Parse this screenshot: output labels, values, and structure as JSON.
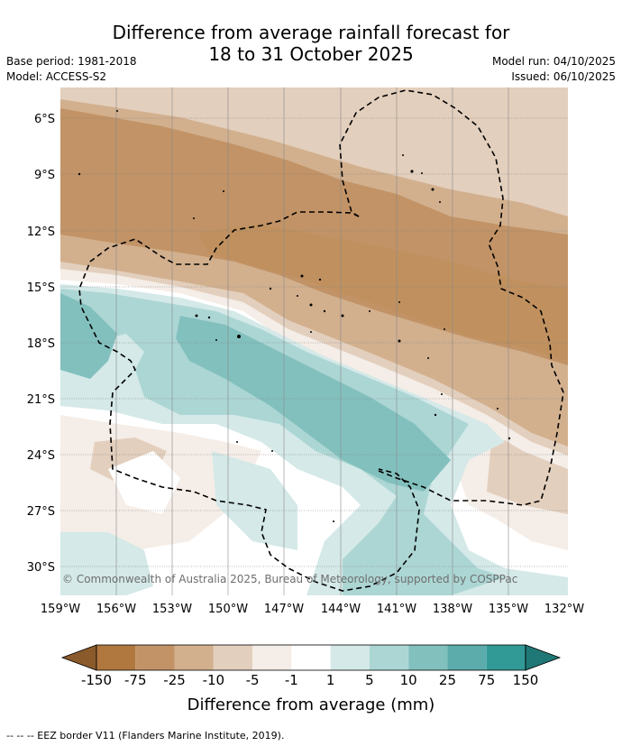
{
  "header": {
    "title_line1": "Difference from average rainfall forecast for",
    "title_line2": "18 to 31 October 2025",
    "base_period": "Base period: 1981-2018",
    "model": "Model: ACCESS-S2",
    "model_run": "Model run: 04/10/2025",
    "issued": "Issued: 06/10/2025"
  },
  "map": {
    "region_lon": [
      "159°W",
      "156°W",
      "153°W",
      "150°W",
      "147°W",
      "144°W",
      "141°W",
      "138°W",
      "135°W",
      "132°W"
    ],
    "region_lat": [
      "6°S",
      "9°S",
      "12°S",
      "15°S",
      "18°S",
      "21°S",
      "24°S",
      "27°S",
      "30°S"
    ],
    "copyright": "© Commonwealth of Australia 2025, Bureau of Meteorology, supported by COSPPac"
  },
  "colorbar": {
    "labels": [
      "-150",
      "-75",
      "-25",
      "-10",
      "-5",
      "-1",
      "1",
      "5",
      "10",
      "25",
      "75",
      "150"
    ],
    "colors": [
      "#8b5a2b",
      "#b0773f",
      "#c29366",
      "#d2b08e",
      "#e3cfbd",
      "#f5ede7",
      "#ffffff",
      "#d4e9e8",
      "#acd6d4",
      "#82c0be",
      "#5bacab",
      "#319a97",
      "#1f7876"
    ],
    "title": "Difference from average (mm)"
  },
  "footnote": "--  --  -- EEZ border V11 (Flanders Marine Institute, 2019)."
}
